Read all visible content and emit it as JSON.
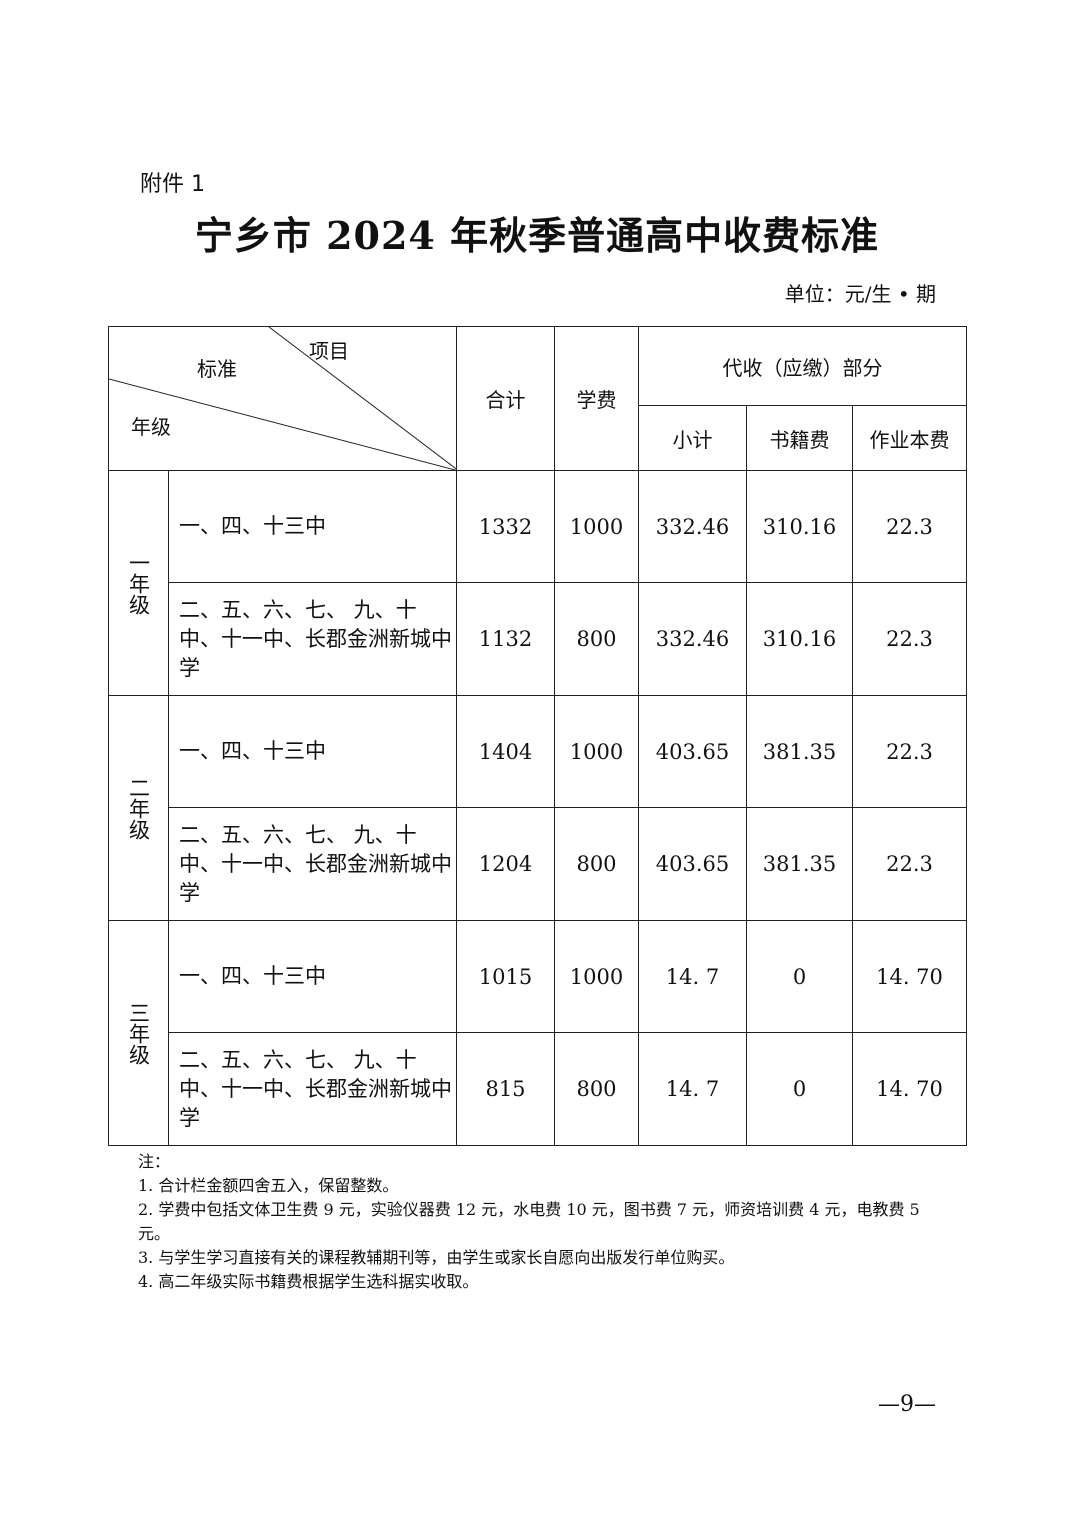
{
  "attachment_label": "附件 1",
  "title": "宁乡市 2024 年秋季普通高中收费标准",
  "unit": "单位：元/生 • 期",
  "header": {
    "project": "项目",
    "standard": "标准",
    "grade": "年级",
    "total": "合计",
    "tuition": "学费",
    "collected": "代收（应缴）部分",
    "subtotal": "小计",
    "books": "书籍费",
    "workbook": "作业本费"
  },
  "groups": [
    {
      "grade": "一年级",
      "rows": [
        {
          "school": "一、四、十三中",
          "total": "1332",
          "tuition": "1000",
          "subtotal": "332.46",
          "books": "310.16",
          "workbook": "22.3"
        },
        {
          "school": "二、五、六、七、 九、十中、十一中、长郡金洲新城中学",
          "total": "1132",
          "tuition": "800",
          "subtotal": "332.46",
          "books": "310.16",
          "workbook": "22.3"
        }
      ]
    },
    {
      "grade": "二年级",
      "rows": [
        {
          "school": "一、四、十三中",
          "total": "1404",
          "tuition": "1000",
          "subtotal": "403.65",
          "books": "381.35",
          "workbook": "22.3"
        },
        {
          "school": "二、五、六、七、 九、十中、十一中、长郡金洲新城中学",
          "total": "1204",
          "tuition": "800",
          "subtotal": "403.65",
          "books": "381.35",
          "workbook": "22.3"
        }
      ]
    },
    {
      "grade": "三年级",
      "rows": [
        {
          "school": "一、四、十三中",
          "total": "1015",
          "tuition": "1000",
          "subtotal": "14. 7",
          "books": "0",
          "workbook": "14. 70"
        },
        {
          "school": "二、五、六、七、 九、十中、十一中、长郡金洲新城中学",
          "total": "815",
          "tuition": "800",
          "subtotal": "14. 7",
          "books": "0",
          "workbook": "14. 70"
        }
      ]
    }
  ],
  "notes": [
    "注：",
    "1. 合计栏金额四舍五入，保留整数。",
    "2. 学费中包括文体卫生费 9 元，实验仪器费 12 元，水电费 10 元，图书费 7 元，师资培训费 4 元，电教费 5 元。",
    "3. 与学生学习直接有关的课程教辅期刊等，由学生或家长自愿向出版发行单位购买。",
    "4. 高二年级实际书籍费根据学生选科据实收取。"
  ],
  "page_number": "—9—"
}
